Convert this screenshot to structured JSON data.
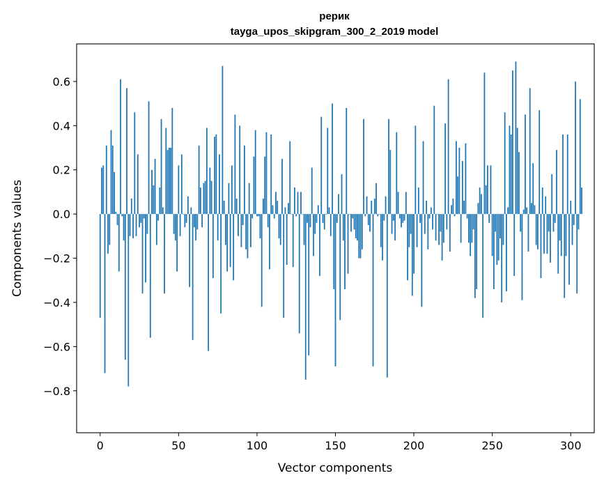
{
  "chart_data": {
    "type": "bar",
    "title_line1": "рерик",
    "title_line2": "tayga_upos_skipgram_300_2_2019 model",
    "xlabel": "Vector components",
    "ylabel": "Components values",
    "xlim": [
      -15,
      315
    ],
    "ylim": [
      -0.99,
      0.77
    ],
    "x_ticks": [
      0,
      50,
      100,
      150,
      200,
      250,
      300
    ],
    "x_tick_labels": [
      "0",
      "50",
      "100",
      "150",
      "200",
      "250",
      "300"
    ],
    "y_ticks": [
      -0.8,
      -0.6,
      -0.4,
      -0.2,
      0.0,
      0.2,
      0.4,
      0.6
    ],
    "y_tick_labels": [
      "−0.8",
      "−0.6",
      "−0.4",
      "−0.2",
      "0.0",
      "0.2",
      "0.4",
      "0.6"
    ],
    "bar_color": "#1f77b4",
    "values": [
      -0.47,
      0.21,
      0.22,
      -0.72,
      0.31,
      -0.18,
      -0.14,
      0.38,
      0.31,
      0.19,
      0.01,
      -0.05,
      -0.26,
      0.61,
      -0.01,
      -0.12,
      -0.66,
      0.57,
      -0.78,
      -0.1,
      0.07,
      -0.11,
      0.46,
      -0.1,
      0.27,
      -0.06,
      -0.04,
      -0.36,
      -0.02,
      -0.31,
      -0.09,
      0.51,
      -0.56,
      0.2,
      0.13,
      0.25,
      -0.14,
      -0.03,
      0.12,
      0.43,
      0.03,
      -0.36,
      0.39,
      0.29,
      0.3,
      0.3,
      0.48,
      -0.09,
      -0.12,
      -0.26,
      0.22,
      -0.1,
      0.27,
      0.0,
      -0.06,
      -0.04,
      0.08,
      -0.33,
      0.03,
      -0.57,
      -0.06,
      -0.12,
      -0.07,
      0.31,
      0.12,
      -0.06,
      0.14,
      0.15,
      0.39,
      -0.62,
      0.21,
      0.15,
      -0.29,
      0.35,
      0.36,
      -0.12,
      0.27,
      -0.45,
      0.67,
      0.06,
      -0.14,
      -0.26,
      0.14,
      -0.24,
      0.22,
      -0.3,
      0.45,
      0.07,
      -0.1,
      0.4,
      -0.15,
      -0.05,
      0.31,
      -0.16,
      -0.2,
      0.14,
      -0.15,
      -0.02,
      0.26,
      0.38,
      -0.01,
      -0.01,
      -0.11,
      -0.42,
      0.07,
      0.26,
      0.37,
      -0.06,
      -0.25,
      0.36,
      0.04,
      -0.02,
      0.1,
      0.06,
      -0.11,
      -0.14,
      0.25,
      -0.47,
      0.03,
      -0.23,
      0.05,
      0.33,
      0.0,
      -0.24,
      0.12,
      -0.01,
      0.1,
      -0.54,
      0.1,
      0.0,
      -0.14,
      -0.75,
      -0.04,
      -0.64,
      -0.06,
      0.21,
      -0.19,
      -0.09,
      -0.04,
      0.04,
      -0.28,
      0.44,
      -0.04,
      -0.07,
      0.0,
      0.39,
      0.03,
      -0.1,
      0.5,
      -0.34,
      -0.69,
      -0.04,
      0.09,
      -0.48,
      0.18,
      -0.12,
      -0.34,
      0.48,
      -0.27,
      0.0,
      -0.08,
      -0.02,
      -0.07,
      -0.11,
      -0.12,
      -0.2,
      -0.2,
      -0.16,
      0.43,
      -0.01,
      0.08,
      -0.05,
      -0.08,
      0.06,
      -0.69,
      0.07,
      0.14,
      -0.01,
      0.0,
      -0.15,
      -0.21,
      -0.03,
      0.08,
      -0.74,
      0.43,
      0.29,
      -0.09,
      -0.03,
      -0.12,
      0.37,
      0.1,
      -0.02,
      -0.06,
      -0.04,
      -0.03,
      0.1,
      -0.3,
      -0.15,
      -0.09,
      -0.37,
      -0.27,
      0.4,
      -0.15,
      0.12,
      -0.04,
      -0.42,
      0.33,
      -0.09,
      0.06,
      -0.16,
      -0.02,
      0.03,
      -0.07,
      0.49,
      -0.12,
      0.0,
      -0.14,
      -0.08,
      -0.21,
      -0.13,
      0.41,
      -0.07,
      0.61,
      -0.17,
      0.04,
      0.07,
      -0.01,
      0.33,
      0.17,
      0.3,
      -0.13,
      0.24,
      0.06,
      0.32,
      -0.02,
      -0.13,
      -0.19,
      -0.13,
      -0.07,
      -0.38,
      -0.34,
      0.05,
      0.12,
      0.09,
      -0.47,
      0.64,
      0.13,
      0.22,
      -0.04,
      0.22,
      -0.19,
      -0.34,
      -0.08,
      -0.23,
      -0.21,
      -0.11,
      -0.4,
      -0.14,
      0.46,
      -0.35,
      0.03,
      0.4,
      0.36,
      0.65,
      -0.28,
      0.69,
      0.39,
      0.28,
      -0.08,
      -0.39,
      0.02,
      0.45,
      0.03,
      -0.17,
      0.57,
      0.05,
      0.23,
      0.04,
      -0.14,
      -0.16,
      0.47,
      -0.29,
      0.12,
      -0.18,
      0.08,
      -0.18,
      -0.08,
      -0.22,
      0.18,
      -0.08,
      -0.04,
      0.29,
      -0.27,
      -0.12,
      -0.19,
      0.36,
      -0.38,
      -0.19,
      0.36,
      -0.32,
      0.06,
      -0.14,
      -0.05,
      0.6,
      -0.36,
      -0.07,
      0.52,
      0.12
    ]
  }
}
